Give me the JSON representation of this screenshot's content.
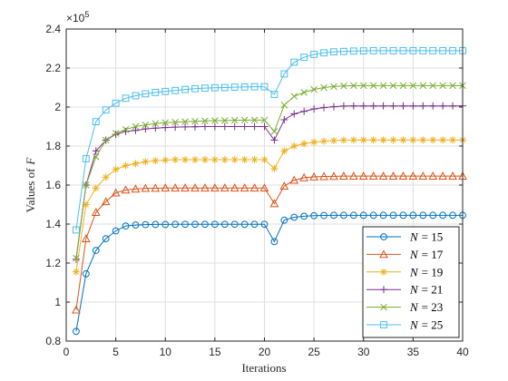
{
  "chart_data": {
    "type": "line",
    "title": "",
    "xlabel": "Iterations",
    "ylabel": "Values of F",
    "ylabel_main": "Values of",
    "ylabel_var": "F",
    "y_multiplier": "×10",
    "y_multiplier_exp": "5",
    "xlim": [
      0,
      40
    ],
    "ylim": [
      0.8,
      2.4
    ],
    "x_ticks": [
      0,
      5,
      10,
      15,
      20,
      25,
      30,
      35,
      40
    ],
    "x_tick_labels": [
      "0",
      "5",
      "10",
      "15",
      "20",
      "25",
      "30",
      "35",
      "40"
    ],
    "y_ticks": [
      0.8,
      1.0,
      1.2,
      1.4,
      1.6,
      1.8,
      2.0,
      2.2,
      2.4
    ],
    "y_tick_labels": [
      "0.8",
      "1",
      "1.2",
      "1.4",
      "1.6",
      "1.8",
      "2",
      "2.2",
      "2.4"
    ],
    "grid": true,
    "legend_position": "bottom-right",
    "x": [
      1,
      2,
      3,
      4,
      5,
      6,
      7,
      8,
      9,
      10,
      11,
      12,
      13,
      14,
      15,
      16,
      17,
      18,
      19,
      20,
      21,
      22,
      23,
      24,
      25,
      26,
      27,
      28,
      29,
      30,
      31,
      32,
      33,
      34,
      35,
      36,
      37,
      38,
      39,
      40
    ],
    "series": [
      {
        "name": "N = 15",
        "legend_var": "N",
        "legend_value": "= 15",
        "color": "#0072BD",
        "marker": "circle",
        "values": [
          0.85,
          1.145,
          1.265,
          1.325,
          1.365,
          1.39,
          1.395,
          1.397,
          1.398,
          1.398,
          1.399,
          1.399,
          1.399,
          1.399,
          1.399,
          1.399,
          1.399,
          1.399,
          1.399,
          1.399,
          1.31,
          1.42,
          1.435,
          1.44,
          1.443,
          1.444,
          1.445,
          1.445,
          1.445,
          1.445,
          1.445,
          1.445,
          1.445,
          1.445,
          1.445,
          1.445,
          1.445,
          1.445,
          1.445,
          1.445
        ]
      },
      {
        "name": "N = 17",
        "legend_var": "N",
        "legend_value": "= 17",
        "color": "#D95319",
        "marker": "triangle",
        "values": [
          0.96,
          1.325,
          1.46,
          1.515,
          1.56,
          1.575,
          1.58,
          1.583,
          1.584,
          1.585,
          1.585,
          1.585,
          1.585,
          1.585,
          1.585,
          1.585,
          1.585,
          1.585,
          1.585,
          1.585,
          1.505,
          1.595,
          1.625,
          1.638,
          1.642,
          1.644,
          1.645,
          1.646,
          1.646,
          1.646,
          1.646,
          1.646,
          1.646,
          1.646,
          1.646,
          1.646,
          1.646,
          1.646,
          1.646,
          1.646
        ]
      },
      {
        "name": "N = 19",
        "legend_var": "N",
        "legend_value": "= 19",
        "color": "#EDB120",
        "marker": "asterisk",
        "values": [
          1.155,
          1.5,
          1.585,
          1.64,
          1.68,
          1.7,
          1.71,
          1.72,
          1.725,
          1.728,
          1.73,
          1.73,
          1.73,
          1.73,
          1.73,
          1.73,
          1.73,
          1.73,
          1.73,
          1.73,
          1.685,
          1.775,
          1.8,
          1.812,
          1.82,
          1.825,
          1.828,
          1.83,
          1.831,
          1.831,
          1.831,
          1.831,
          1.831,
          1.831,
          1.831,
          1.831,
          1.831,
          1.831,
          1.831,
          1.831
        ]
      },
      {
        "name": "N = 21",
        "legend_var": "N",
        "legend_value": "= 21",
        "color": "#7E2F8E",
        "marker": "plus",
        "values": [
          1.22,
          1.6,
          1.775,
          1.83,
          1.86,
          1.875,
          1.88,
          1.888,
          1.892,
          1.895,
          1.897,
          1.898,
          1.899,
          1.9,
          1.9,
          1.9,
          1.9,
          1.9,
          1.9,
          1.9,
          1.83,
          1.935,
          1.965,
          1.978,
          1.99,
          1.997,
          2.002,
          2.005,
          2.006,
          2.006,
          2.006,
          2.006,
          2.006,
          2.006,
          2.006,
          2.006,
          2.006,
          2.006,
          2.006,
          2.006
        ]
      },
      {
        "name": "N = 23",
        "legend_var": "N",
        "legend_value": "= 23",
        "color": "#77AC30",
        "marker": "cross",
        "values": [
          1.225,
          1.6,
          1.745,
          1.83,
          1.865,
          1.885,
          1.9,
          1.908,
          1.915,
          1.92,
          1.922,
          1.925,
          1.927,
          1.929,
          1.93,
          1.931,
          1.932,
          1.933,
          1.933,
          1.933,
          1.875,
          2.01,
          2.055,
          2.075,
          2.09,
          2.1,
          2.105,
          2.108,
          2.11,
          2.11,
          2.11,
          2.11,
          2.11,
          2.11,
          2.11,
          2.11,
          2.11,
          2.11,
          2.11,
          2.11
        ]
      },
      {
        "name": "N = 25",
        "legend_var": "N",
        "legend_value": "= 25",
        "color": "#4DBEEE",
        "marker": "square",
        "values": [
          1.37,
          1.735,
          1.925,
          1.985,
          2.02,
          2.045,
          2.058,
          2.068,
          2.075,
          2.08,
          2.085,
          2.09,
          2.094,
          2.097,
          2.099,
          2.1,
          2.102,
          2.103,
          2.104,
          2.104,
          2.065,
          2.17,
          2.23,
          2.255,
          2.27,
          2.278,
          2.283,
          2.285,
          2.287,
          2.288,
          2.289,
          2.289,
          2.289,
          2.289,
          2.289,
          2.289,
          2.289,
          2.289,
          2.289,
          2.289
        ]
      }
    ]
  }
}
